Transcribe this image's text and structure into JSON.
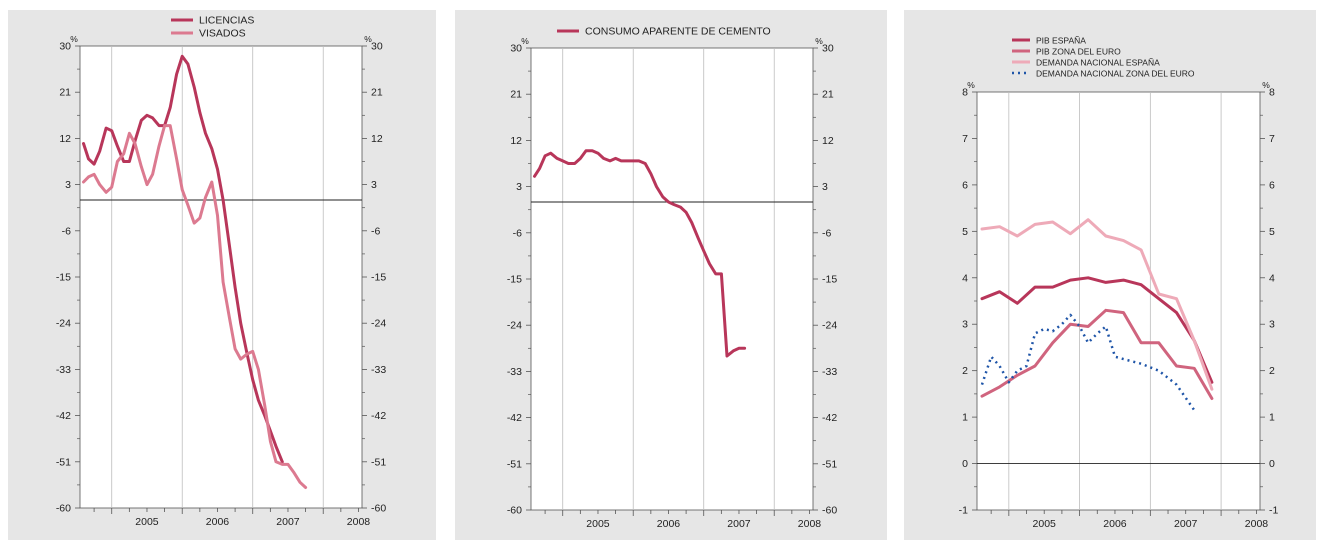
{
  "chart_data": [
    {
      "type": "line",
      "title": "",
      "ylim": [
        -60,
        30
      ],
      "yticks": [
        30,
        21,
        12,
        3,
        -6,
        -15,
        -24,
        -33,
        -42,
        -51,
        -60
      ],
      "y_unit_label": "%",
      "xlim": [
        2004.55,
        2008.55
      ],
      "year_labels": [
        "2005",
        "2006",
        "2007",
        "2008"
      ],
      "reference_line": 0,
      "legend_position": "top-center",
      "series": [
        {
          "name": "LICENCIAS",
          "color": "#b8365a",
          "width": 3,
          "dash": "",
          "points": [
            [
              2004.6,
              11
            ],
            [
              2004.67,
              8
            ],
            [
              2004.75,
              7
            ],
            [
              2004.83,
              9.5
            ],
            [
              2004.92,
              14
            ],
            [
              2005.0,
              13.5
            ],
            [
              2005.08,
              10.5
            ],
            [
              2005.17,
              7.5
            ],
            [
              2005.25,
              7.5
            ],
            [
              2005.33,
              11.5
            ],
            [
              2005.42,
              15.5
            ],
            [
              2005.5,
              16.5
            ],
            [
              2005.58,
              16
            ],
            [
              2005.67,
              14.5
            ],
            [
              2005.75,
              14.5
            ],
            [
              2005.83,
              18
            ],
            [
              2005.92,
              24.5
            ],
            [
              2006.0,
              28
            ],
            [
              2006.08,
              26.5
            ],
            [
              2006.17,
              22
            ],
            [
              2006.25,
              17
            ],
            [
              2006.33,
              13
            ],
            [
              2006.42,
              10
            ],
            [
              2006.5,
              6
            ],
            [
              2006.58,
              0
            ],
            [
              2006.67,
              -9
            ],
            [
              2006.75,
              -17
            ],
            [
              2006.83,
              -24
            ],
            [
              2006.92,
              -30
            ],
            [
              2007.0,
              -35
            ],
            [
              2007.08,
              -39
            ],
            [
              2007.17,
              -42
            ],
            [
              2007.25,
              -45
            ],
            [
              2007.33,
              -48
            ],
            [
              2007.42,
              -51
            ]
          ]
        },
        {
          "name": "VISADOS",
          "color": "#dc7a90",
          "width": 3,
          "dash": "",
          "points": [
            [
              2004.6,
              3.5
            ],
            [
              2004.67,
              4.5
            ],
            [
              2004.75,
              5
            ],
            [
              2004.83,
              3
            ],
            [
              2004.92,
              1.5
            ],
            [
              2005.0,
              2.5
            ],
            [
              2005.08,
              7.5
            ],
            [
              2005.17,
              9
            ],
            [
              2005.25,
              13
            ],
            [
              2005.33,
              11
            ],
            [
              2005.42,
              6.5
            ],
            [
              2005.5,
              3
            ],
            [
              2005.58,
              5
            ],
            [
              2005.67,
              10.5
            ],
            [
              2005.75,
              14.5
            ],
            [
              2005.83,
              14.5
            ],
            [
              2005.92,
              8
            ],
            [
              2006.0,
              2
            ],
            [
              2006.08,
              -1
            ],
            [
              2006.17,
              -4.5
            ],
            [
              2006.25,
              -3.5
            ],
            [
              2006.33,
              0.5
            ],
            [
              2006.42,
              3.5
            ],
            [
              2006.5,
              -3
            ],
            [
              2006.58,
              -16
            ],
            [
              2006.67,
              -23
            ],
            [
              2006.75,
              -29
            ],
            [
              2006.83,
              -31
            ],
            [
              2006.92,
              -30
            ],
            [
              2007.0,
              -29.5
            ],
            [
              2007.08,
              -33
            ],
            [
              2007.17,
              -40
            ],
            [
              2007.25,
              -47
            ],
            [
              2007.33,
              -51
            ],
            [
              2007.42,
              -51.5
            ],
            [
              2007.5,
              -51.5
            ],
            [
              2007.58,
              -53
            ],
            [
              2007.67,
              -55
            ],
            [
              2007.75,
              -56
            ]
          ]
        }
      ]
    },
    {
      "type": "line",
      "title": "",
      "ylim": [
        -60,
        30
      ],
      "yticks": [
        30,
        21,
        12,
        3,
        -6,
        -15,
        -24,
        -33,
        -42,
        -51,
        -60
      ],
      "y_unit_label": "%",
      "xlim": [
        2004.55,
        2008.55
      ],
      "year_labels": [
        "2005",
        "2006",
        "2007",
        "2008"
      ],
      "reference_line": 0,
      "legend_position": "top-center",
      "series": [
        {
          "name": "CONSUMO APARENTE DE CEMENTO",
          "color": "#b8365a",
          "width": 3,
          "dash": "",
          "points": [
            [
              2004.6,
              5
            ],
            [
              2004.67,
              6.5
            ],
            [
              2004.75,
              9
            ],
            [
              2004.83,
              9.5
            ],
            [
              2004.92,
              8.5
            ],
            [
              2005.0,
              8
            ],
            [
              2005.08,
              7.5
            ],
            [
              2005.17,
              7.5
            ],
            [
              2005.25,
              8.5
            ],
            [
              2005.33,
              10
            ],
            [
              2005.42,
              10
            ],
            [
              2005.5,
              9.5
            ],
            [
              2005.58,
              8.5
            ],
            [
              2005.67,
              8
            ],
            [
              2005.75,
              8.5
            ],
            [
              2005.83,
              8
            ],
            [
              2005.92,
              8
            ],
            [
              2006.0,
              8
            ],
            [
              2006.08,
              8
            ],
            [
              2006.17,
              7.5
            ],
            [
              2006.25,
              5.5
            ],
            [
              2006.33,
              3
            ],
            [
              2006.42,
              1
            ],
            [
              2006.5,
              0
            ],
            [
              2006.58,
              -0.5
            ],
            [
              2006.67,
              -1
            ],
            [
              2006.75,
              -2
            ],
            [
              2006.83,
              -4
            ],
            [
              2006.92,
              -7
            ],
            [
              2007.0,
              -9.5
            ],
            [
              2007.08,
              -12
            ],
            [
              2007.17,
              -14
            ],
            [
              2007.25,
              -14
            ],
            [
              2007.33,
              -30
            ],
            [
              2007.42,
              -29
            ],
            [
              2007.5,
              -28.5
            ],
            [
              2007.58,
              -28.5
            ]
          ]
        }
      ]
    },
    {
      "type": "line",
      "title": "",
      "ylim": [
        -1,
        8
      ],
      "yticks": [
        8,
        7,
        6,
        5,
        4,
        3,
        2,
        1,
        0,
        -1
      ],
      "y_unit_label": "%",
      "xlim": [
        2004.55,
        2008.55
      ],
      "year_labels": [
        "2005",
        "2006",
        "2007",
        "2008"
      ],
      "reference_line": 0,
      "legend_position": "top-left",
      "series": [
        {
          "name": "PIB ESPAÑA",
          "color": "#b8365a",
          "width": 3,
          "dash": "",
          "points": [
            [
              2004.62,
              3.55
            ],
            [
              2004.87,
              3.7
            ],
            [
              2005.12,
              3.45
            ],
            [
              2005.37,
              3.8
            ],
            [
              2005.62,
              3.8
            ],
            [
              2005.87,
              3.95
            ],
            [
              2006.12,
              4.0
            ],
            [
              2006.37,
              3.9
            ],
            [
              2006.62,
              3.95
            ],
            [
              2006.87,
              3.85
            ],
            [
              2007.12,
              3.55
            ],
            [
              2007.37,
              3.25
            ],
            [
              2007.62,
              2.65
            ],
            [
              2007.87,
              1.75
            ]
          ]
        },
        {
          "name": "PIB ZONA DEL EURO",
          "color": "#d0647e",
          "width": 3,
          "dash": "",
          "points": [
            [
              2004.62,
              1.45
            ],
            [
              2004.87,
              1.65
            ],
            [
              2005.12,
              1.9
            ],
            [
              2005.37,
              2.1
            ],
            [
              2005.62,
              2.6
            ],
            [
              2005.87,
              3.0
            ],
            [
              2006.12,
              2.95
            ],
            [
              2006.37,
              3.3
            ],
            [
              2006.62,
              3.25
            ],
            [
              2006.87,
              2.6
            ],
            [
              2007.12,
              2.6
            ],
            [
              2007.37,
              2.1
            ],
            [
              2007.62,
              2.05
            ],
            [
              2007.87,
              1.4
            ]
          ]
        },
        {
          "name": "DEMANDA NACIONAL ESPAÑA",
          "color": "#eeaab8",
          "width": 3,
          "dash": "",
          "points": [
            [
              2004.62,
              5.05
            ],
            [
              2004.87,
              5.1
            ],
            [
              2005.12,
              4.9
            ],
            [
              2005.37,
              5.15
            ],
            [
              2005.62,
              5.2
            ],
            [
              2005.87,
              4.95
            ],
            [
              2006.12,
              5.25
            ],
            [
              2006.37,
              4.9
            ],
            [
              2006.62,
              4.8
            ],
            [
              2006.87,
              4.6
            ],
            [
              2007.12,
              3.65
            ],
            [
              2007.37,
              3.55
            ],
            [
              2007.62,
              2.65
            ],
            [
              2007.87,
              1.6
            ]
          ]
        },
        {
          "name": "DEMANDA NACIONAL ZONA DEL EURO",
          "color": "#1f55a8",
          "width": 2.5,
          "dash": "2 4",
          "points": [
            [
              2004.62,
              1.7
            ],
            [
              2004.75,
              2.3
            ],
            [
              2004.87,
              2.1
            ],
            [
              2005.0,
              1.75
            ],
            [
              2005.12,
              2.0
            ],
            [
              2005.25,
              2.1
            ],
            [
              2005.37,
              2.8
            ],
            [
              2005.5,
              2.9
            ],
            [
              2005.62,
              2.85
            ],
            [
              2005.75,
              3.0
            ],
            [
              2005.87,
              3.2
            ],
            [
              2006.0,
              2.95
            ],
            [
              2006.12,
              2.6
            ],
            [
              2006.25,
              2.8
            ],
            [
              2006.37,
              2.95
            ],
            [
              2006.5,
              2.3
            ],
            [
              2006.62,
              2.25
            ],
            [
              2006.87,
              2.15
            ],
            [
              2007.12,
              2.0
            ],
            [
              2007.37,
              1.7
            ],
            [
              2007.62,
              1.15
            ]
          ]
        }
      ]
    }
  ]
}
